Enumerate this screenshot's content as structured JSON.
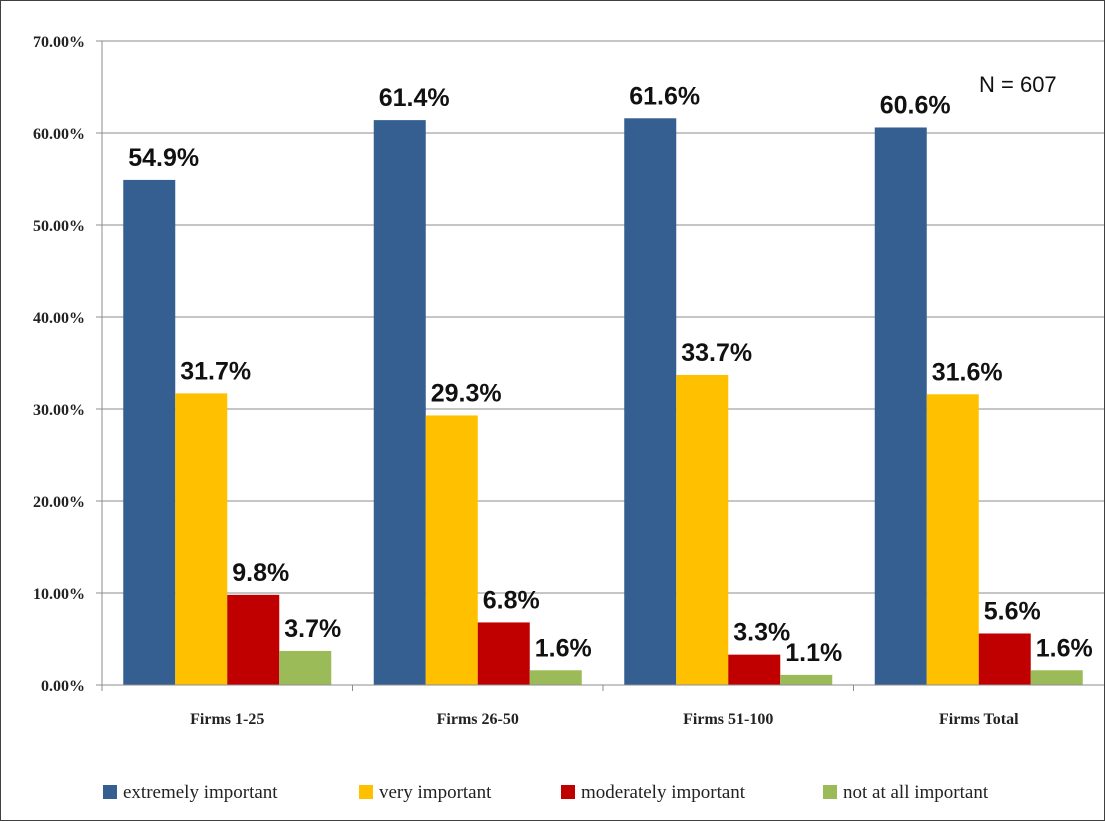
{
  "chart_data": {
    "type": "bar",
    "categories": [
      "Firms 1-25",
      "Firms 26-50",
      "Firms 51-100",
      "Firms Total"
    ],
    "series": [
      {
        "name": "extremely important",
        "color": "#365F91",
        "values": [
          54.9,
          61.4,
          61.6,
          60.6
        ],
        "labels": [
          "54.9%",
          "61.4%",
          "61.6%",
          "60.6%"
        ]
      },
      {
        "name": "very important",
        "color": "#FFC000",
        "values": [
          31.7,
          29.3,
          33.7,
          31.6
        ],
        "labels": [
          "31.7%",
          "29.3%",
          "33.7%",
          "31.6%"
        ]
      },
      {
        "name": "moderately important",
        "color": "#C00000",
        "values": [
          9.8,
          6.8,
          3.3,
          5.6
        ],
        "labels": [
          "9.8%",
          "6.8%",
          "3.3%",
          "5.6%"
        ]
      },
      {
        "name": "not at all important",
        "color": "#9BBB59",
        "values": [
          3.7,
          1.6,
          1.1,
          1.6
        ],
        "labels": [
          "3.7%",
          "1.6%",
          "1.1%",
          "1.6%"
        ]
      }
    ],
    "yticks": [
      "0.00%",
      "10.00%",
      "20.00%",
      "30.00%",
      "40.00%",
      "50.00%",
      "60.00%",
      "70.00%"
    ],
    "ylim": [
      0,
      70
    ],
    "grid": true,
    "legend_position": "bottom",
    "annotation": "N = 607"
  }
}
